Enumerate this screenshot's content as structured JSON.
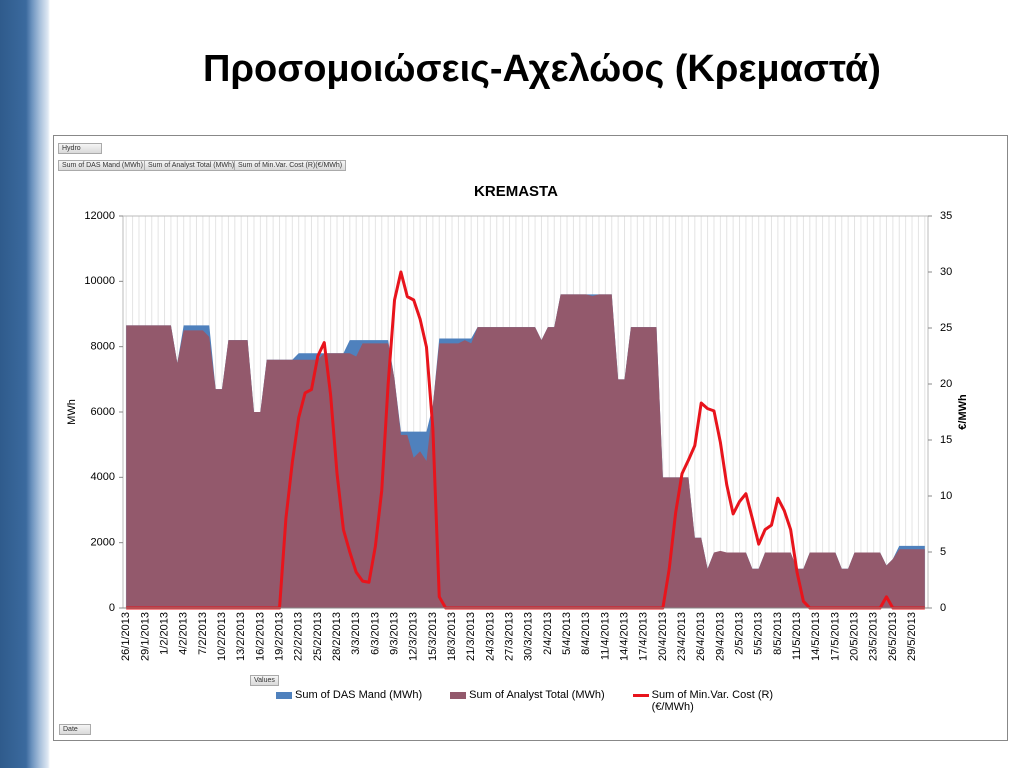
{
  "slide": {
    "title": "Προσομοιώσεις-Αχελώος (Κρεμαστά)",
    "pivot": {
      "filter": "Hydro",
      "fields": [
        "Sum of DAS Mand  (MWh)",
        "Sum of Analyst Total (MWh)",
        "Sum of Min.Var. Cost (R)(€/MWh)"
      ],
      "values": "Values",
      "axis": "Date"
    }
  },
  "chart_data": {
    "type": "area-line",
    "title": "KREMASTA",
    "y_label": "MWh",
    "y2_label": "€/MWh",
    "categories": [
      "26/1/2013",
      null,
      null,
      "29/1/2013",
      null,
      null,
      "1/2/2013",
      null,
      null,
      "4/2/2013",
      null,
      null,
      "7/2/2013",
      null,
      null,
      "10/2/2013",
      null,
      null,
      "13/2/2013",
      null,
      null,
      "16/2/2013",
      null,
      null,
      "19/2/2013",
      null,
      null,
      "22/2/2013",
      null,
      null,
      "25/2/2013",
      null,
      null,
      "28/2/2013",
      null,
      null,
      "3/3/2013",
      null,
      null,
      "6/3/2013",
      null,
      null,
      "9/3/2013",
      null,
      null,
      "12/3/2013",
      null,
      null,
      "15/3/2013",
      null,
      null,
      "18/3/2013",
      null,
      null,
      "21/3/2013",
      null,
      null,
      "24/3/2013",
      null,
      null,
      "27/3/2013",
      null,
      null,
      "30/3/2013",
      null,
      null,
      "2/4/2013",
      null,
      null,
      "5/4/2013",
      null,
      null,
      "8/4/2013",
      null,
      null,
      "11/4/2013",
      null,
      null,
      "14/4/2013",
      null,
      null,
      "17/4/2013",
      null,
      null,
      "20/4/2013",
      null,
      null,
      "23/4/2013",
      null,
      null,
      "26/4/2013",
      null,
      null,
      "29/4/2013",
      null,
      null,
      "2/5/2013",
      null,
      null,
      "5/5/2013",
      null,
      null,
      "8/5/2013",
      null,
      null,
      "11/5/2013",
      null,
      null,
      "14/5/2013",
      null,
      null,
      "17/5/2013",
      null,
      null,
      "20/5/2013",
      null,
      null,
      "23/5/2013",
      null,
      null,
      "26/5/2013",
      null,
      null,
      "29/5/2013",
      null,
      null
    ],
    "series": [
      {
        "name": "Sum of DAS Mand  (MWh)",
        "kind": "area",
        "color": "#4f81bd",
        "values": [
          8650,
          8650,
          8650,
          8650,
          8650,
          8650,
          8650,
          8650,
          7500,
          8650,
          8650,
          8650,
          8650,
          8650,
          6700,
          6700,
          8200,
          8200,
          8200,
          8200,
          6000,
          6000,
          7600,
          7600,
          7600,
          7600,
          7600,
          7800,
          7800,
          7800,
          7800,
          7800,
          7800,
          7800,
          7800,
          8200,
          8200,
          8200,
          8200,
          8200,
          8200,
          8200,
          7000,
          5400,
          5400,
          5400,
          5400,
          5400,
          6200,
          8250,
          8250,
          8250,
          8250,
          8250,
          8250,
          8600,
          8600,
          8600,
          8600,
          8600,
          8600,
          8600,
          8600,
          8600,
          8600,
          8200,
          8600,
          8600,
          9600,
          9600,
          9600,
          9600,
          9600,
          9600,
          9600,
          9600,
          9600,
          7000,
          7000,
          8600,
          8600,
          8600,
          8600,
          8600,
          4000,
          4000,
          4000,
          4000,
          4000,
          2150,
          2150,
          1200,
          1700,
          1700,
          1700,
          1700,
          1700,
          1700,
          1200,
          1200,
          1700,
          1700,
          1700,
          1700,
          1700,
          1200,
          1200,
          1700,
          1700,
          1700,
          1700,
          1700,
          1200,
          1200,
          1700,
          1700,
          1700,
          1700,
          1700,
          1300,
          1500,
          1900,
          1900,
          1900,
          1900,
          1900
        ]
      },
      {
        "name": "Sum of Analyst Total (MWh)",
        "kind": "area",
        "color": "#93596c",
        "values": [
          8650,
          8650,
          8650,
          8650,
          8650,
          8650,
          8650,
          8650,
          7500,
          8500,
          8500,
          8500,
          8500,
          8300,
          6700,
          6700,
          8200,
          8200,
          8200,
          8200,
          6000,
          6000,
          7600,
          7600,
          7600,
          7600,
          7600,
          7600,
          7600,
          7600,
          7600,
          7800,
          7800,
          7800,
          7800,
          7800,
          7700,
          8100,
          8100,
          8100,
          8100,
          8100,
          7000,
          5300,
          5300,
          4600,
          4800,
          4500,
          6200,
          8100,
          8100,
          8100,
          8100,
          8200,
          8100,
          8600,
          8600,
          8600,
          8600,
          8600,
          8600,
          8600,
          8600,
          8600,
          8600,
          8200,
          8600,
          8600,
          9600,
          9600,
          9600,
          9600,
          9600,
          9550,
          9600,
          9600,
          9600,
          7000,
          7000,
          8600,
          8600,
          8600,
          8600,
          8600,
          4000,
          4000,
          4000,
          4000,
          4000,
          2150,
          2150,
          1200,
          1700,
          1750,
          1700,
          1700,
          1700,
          1700,
          1200,
          1200,
          1700,
          1700,
          1700,
          1700,
          1700,
          1200,
          1200,
          1700,
          1700,
          1700,
          1700,
          1700,
          1200,
          1200,
          1700,
          1700,
          1700,
          1700,
          1700,
          1300,
          1500,
          1800,
          1800,
          1800,
          1800,
          1800
        ]
      },
      {
        "name": "Sum of Min.Var. Cost (R) (€/MWh)",
        "kind": "line",
        "axis": "y2",
        "color": "#e8141c",
        "values": [
          0,
          0,
          0,
          0,
          0,
          0,
          0,
          0,
          0,
          0,
          0,
          0,
          0,
          0,
          0,
          0,
          0,
          0,
          0,
          0,
          0,
          0,
          0,
          0,
          0,
          8,
          13,
          17,
          19.2,
          19.5,
          22.5,
          23.7,
          19,
          12,
          7,
          5,
          3.2,
          2.4,
          2.3,
          5.5,
          10.5,
          20,
          27.5,
          30,
          27.8,
          27.5,
          25.8,
          23.3,
          16,
          1,
          0,
          0,
          0,
          0,
          0,
          0,
          0,
          0,
          0,
          0,
          0,
          0,
          0,
          0,
          0,
          0,
          0,
          0,
          0,
          0,
          0,
          0,
          0,
          0,
          0,
          0,
          0,
          0,
          0,
          0,
          0,
          0,
          0,
          0,
          0,
          3.5,
          8.5,
          12,
          13.2,
          14.5,
          18.3,
          17.8,
          17.6,
          14.8,
          11,
          8.4,
          9.5,
          10.2,
          8,
          5.7,
          7,
          7.4,
          9.8,
          8.7,
          7,
          3.2,
          0.6,
          0,
          0,
          0,
          0,
          0,
          0,
          0,
          0,
          0,
          0,
          0,
          0,
          1,
          0,
          0,
          0,
          0,
          0,
          0
        ]
      }
    ],
    "ylim": [
      0,
      12000
    ],
    "yticks": [
      0,
      2000,
      4000,
      6000,
      8000,
      10000,
      12000
    ],
    "y2lim": [
      0,
      35
    ],
    "y2ticks": [
      0,
      5,
      10,
      15,
      20,
      25,
      30,
      35
    ],
    "grid": "x",
    "legend": "bottom"
  }
}
